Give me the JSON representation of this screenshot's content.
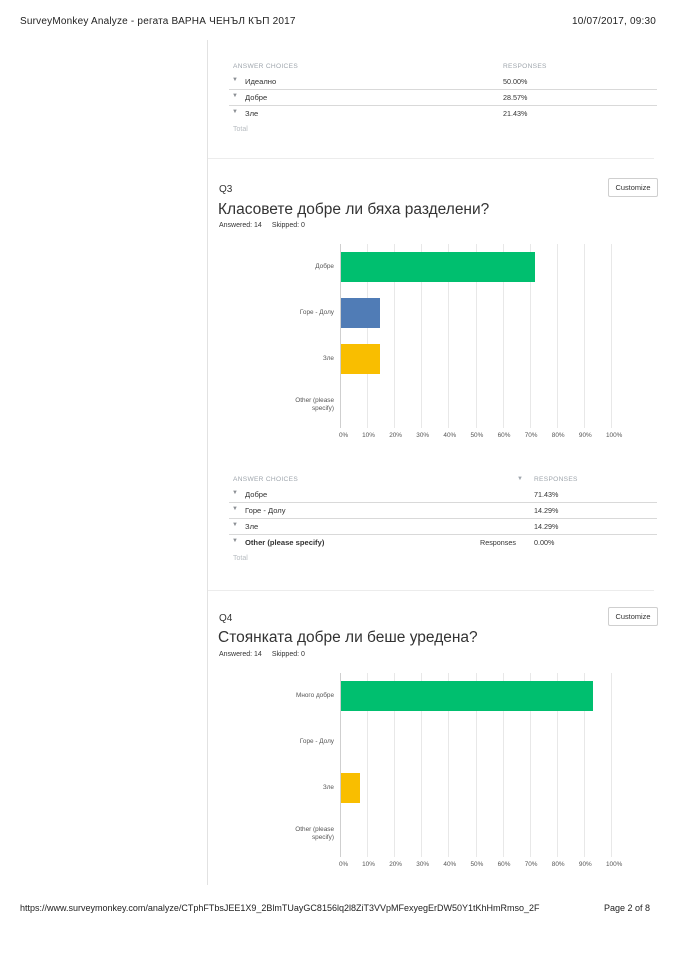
{
  "header": {
    "left": "SurveyMonkey Analyze - регата ВАРНА ЧЕНЪЛ КЪП 2017",
    "right": "10/07/2017, 09:30"
  },
  "footer": {
    "url": "https://www.surveymonkey.com/analyze/CTphFTbsJEE1X9_2BlmTUayGC8156lq2l8ZiT3VVpMFexyegErDW50Y1tKhHmRmso_2F",
    "page": "Page 2 of 8"
  },
  "table_headers": {
    "choices": "ANSWER CHOICES",
    "responses": "RESPONSES",
    "total": "Total"
  },
  "q2_table": {
    "rows": [
      {
        "label": "Идеално",
        "pct": "50.00%"
      },
      {
        "label": "Добре",
        "pct": "28.57%"
      },
      {
        "label": "Зле",
        "pct": "21.43%"
      }
    ]
  },
  "q3": {
    "number": "Q3",
    "title": "Класовете добре ли бяха разделени?",
    "answered": "Answered: 14",
    "skipped": "Skipped: 0",
    "customize": "Customize",
    "table": {
      "rows": [
        {
          "label": "Добре",
          "pct": "71.43%"
        },
        {
          "label": "Горе - Долу",
          "pct": "14.29%"
        },
        {
          "label": "Зле",
          "pct": "14.29%"
        },
        {
          "label": "Other (please specify)",
          "pct": "0.00%",
          "link": "Responses"
        }
      ]
    }
  },
  "q4": {
    "number": "Q4",
    "title": "Стоянката добре ли беше уредена?",
    "answered": "Answered: 14",
    "skipped": "Skipped: 0",
    "customize": "Customize"
  },
  "colors": {
    "green": "#00bf6f",
    "blue": "#507cb6",
    "yellow": "#f9be00"
  },
  "chart_data": [
    {
      "type": "bar",
      "orientation": "horizontal",
      "categories": [
        "Добре",
        "Горе - Долу",
        "Зле",
        "Other (please specify)"
      ],
      "values": [
        71.43,
        14.29,
        14.29,
        0
      ],
      "colors": [
        "#00bf6f",
        "#507cb6",
        "#f9be00",
        "#999999"
      ],
      "xlim": [
        0,
        100
      ],
      "ticks": [
        "0%",
        "10%",
        "20%",
        "30%",
        "40%",
        "50%",
        "60%",
        "70%",
        "80%",
        "90%",
        "100%"
      ]
    },
    {
      "type": "bar",
      "orientation": "horizontal",
      "categories": [
        "Много добре",
        "Горе - Долу",
        "Зле",
        "Other (please specify)"
      ],
      "values": [
        92.86,
        0,
        7.14,
        0
      ],
      "colors": [
        "#00bf6f",
        "#507cb6",
        "#f9be00",
        "#999999"
      ],
      "xlim": [
        0,
        100
      ],
      "ticks": [
        "0%",
        "10%",
        "20%",
        "30%",
        "40%",
        "50%",
        "60%",
        "70%",
        "80%",
        "90%",
        "100%"
      ]
    }
  ]
}
